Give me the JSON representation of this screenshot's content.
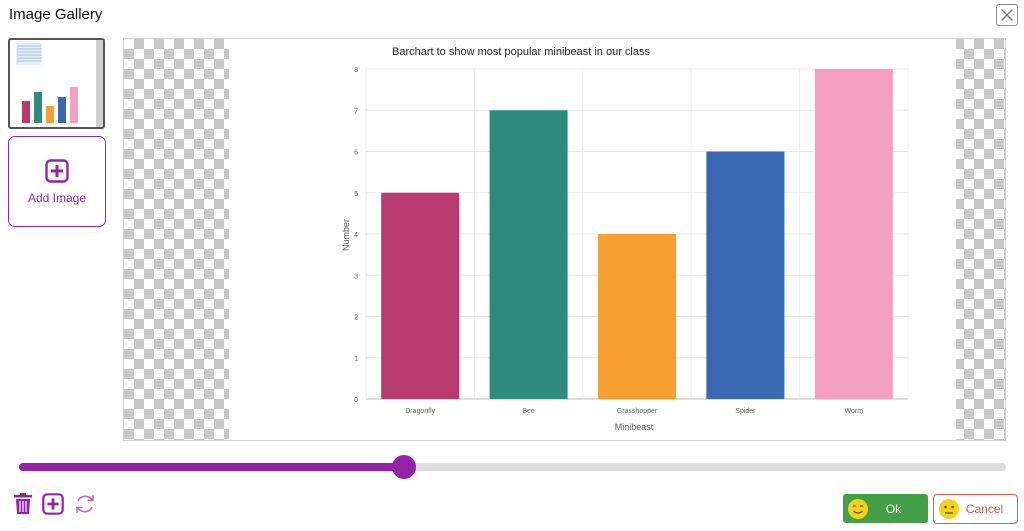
{
  "dialog": {
    "title": "Image Gallery"
  },
  "gallery": {
    "add_image_label": "Add Image"
  },
  "slider": {
    "value_fraction": 0.39
  },
  "buttons": {
    "ok_label": "Ok",
    "cancel_label": "Cancel"
  },
  "icons": {
    "close": "close-icon",
    "add": "plus-square-icon",
    "delete": "trash-icon",
    "rotate": "rotate-icon",
    "ok_face": "smiley-face-icon",
    "cancel_face": "neutral-face-icon"
  },
  "colors": {
    "accent": "#9324a8",
    "ok": "#43a046",
    "cancel": "#e05a50",
    "face": "#f2d21b"
  },
  "chart_data": {
    "type": "bar",
    "title": "Barchart to show most popular minibeast in our class",
    "xlabel": "Minibeast",
    "ylabel": "Number",
    "categories": [
      "Dragonfly",
      "Bee",
      "Grasshopper",
      "Spider",
      "Worm"
    ],
    "values": [
      5,
      7,
      4,
      6,
      8
    ],
    "colors": [
      "#b83b6e",
      "#2e8b7e",
      "#f5a030",
      "#3a67b2",
      "#f3a1bf"
    ],
    "ylim": [
      0,
      8
    ],
    "yticks": [
      "0",
      "1",
      "2",
      "3",
      "4",
      "5",
      "6",
      "7",
      "8"
    ],
    "grid": true,
    "legend": "none"
  }
}
